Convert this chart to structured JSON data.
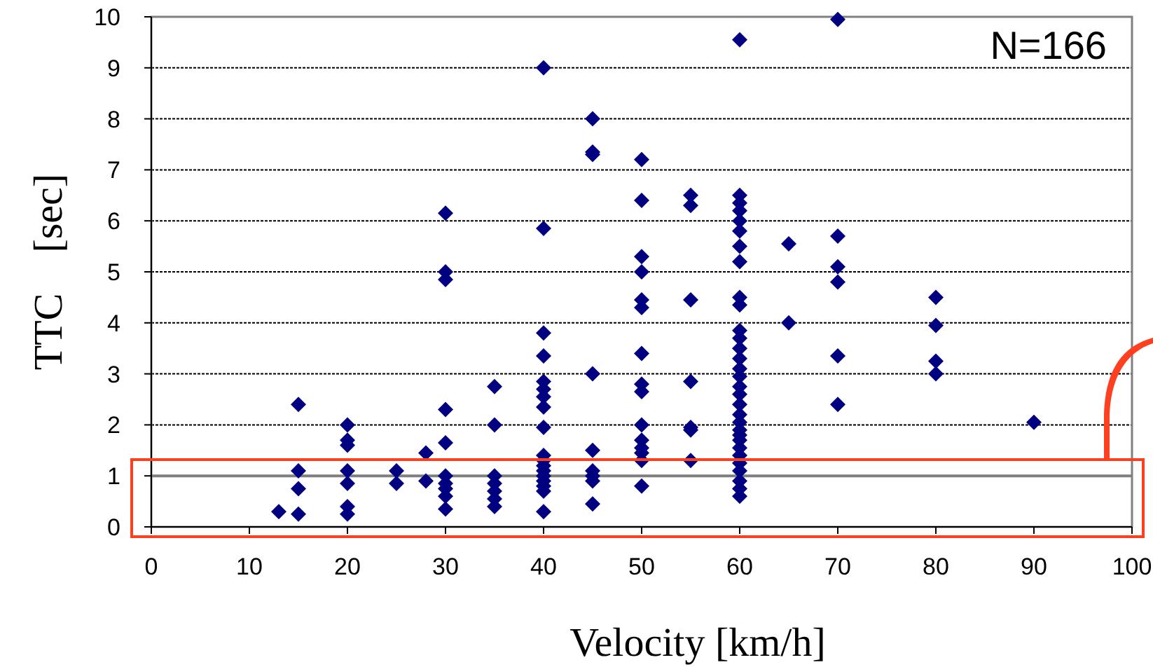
{
  "chart_data": {
    "type": "scatter",
    "xlabel": "Velocity [km/h]",
    "ylabel": "TTC　[sec]",
    "annotations": [
      "N=166"
    ],
    "xlim": [
      0,
      100
    ],
    "ylim": [
      0,
      10
    ],
    "xticks": [
      0,
      10,
      20,
      30,
      40,
      50,
      60,
      70,
      80,
      90,
      100
    ],
    "yticks": [
      0,
      1,
      2,
      3,
      4,
      5,
      6,
      7,
      8,
      9,
      10
    ],
    "grid": "y",
    "marker": "diamond",
    "ref_lines": [
      {
        "axis": "y",
        "value": 1,
        "color": "#808080"
      }
    ],
    "series": [
      {
        "color": "#000080",
        "x": [
          13,
          15,
          15,
          15,
          15,
          20,
          20,
          20,
          20,
          20,
          20,
          20,
          25,
          25,
          28,
          28,
          30,
          30,
          30,
          30,
          30,
          30,
          30,
          30,
          30,
          30,
          35,
          35,
          35,
          35,
          35,
          35,
          35,
          40,
          40,
          40,
          40,
          40,
          40,
          40,
          40,
          40,
          40,
          40,
          40,
          40,
          40,
          40,
          40,
          40,
          40,
          45,
          45,
          45,
          45,
          45,
          45,
          45,
          45,
          45,
          50,
          50,
          50,
          50,
          50,
          50,
          50,
          50,
          50,
          50,
          50,
          50,
          50,
          50,
          50,
          55,
          55,
          55,
          55,
          55,
          55,
          55,
          60,
          60,
          60,
          60,
          60,
          60,
          60,
          60,
          60,
          60,
          60,
          60,
          60,
          60,
          60,
          60,
          60,
          60,
          60,
          60,
          60,
          60,
          60,
          60,
          60,
          60,
          60,
          60,
          60,
          60,
          60,
          65,
          65,
          70,
          70,
          70,
          70,
          70,
          70,
          80,
          80,
          80,
          80,
          90
        ],
        "values": [
          0.3,
          2.4,
          1.1,
          0.75,
          0.25,
          2.0,
          1.7,
          1.6,
          1.1,
          0.85,
          0.4,
          0.25,
          1.1,
          0.85,
          1.45,
          0.9,
          6.15,
          5.0,
          4.85,
          2.3,
          1.65,
          1.0,
          0.85,
          0.75,
          0.6,
          0.35,
          2.75,
          2.0,
          1.0,
          0.85,
          0.7,
          0.55,
          0.4,
          9.0,
          5.85,
          3.8,
          3.35,
          2.85,
          2.7,
          2.55,
          2.35,
          1.95,
          1.4,
          1.3,
          1.2,
          1.1,
          1.0,
          0.9,
          0.8,
          0.7,
          0.3,
          8.0,
          7.35,
          7.3,
          3.0,
          1.5,
          1.1,
          1.0,
          0.9,
          0.45,
          7.2,
          6.4,
          5.3,
          5.0,
          4.45,
          4.3,
          3.4,
          2.8,
          2.65,
          2.0,
          1.7,
          1.55,
          1.45,
          1.3,
          0.8,
          6.5,
          6.3,
          4.45,
          2.85,
          1.95,
          1.9,
          1.3,
          9.55,
          6.5,
          6.35,
          6.2,
          6.0,
          5.8,
          5.5,
          5.2,
          4.5,
          4.35,
          3.85,
          3.7,
          3.5,
          3.3,
          3.1,
          2.95,
          2.75,
          2.6,
          2.4,
          2.2,
          2.05,
          1.9,
          1.8,
          1.7,
          1.55,
          1.4,
          1.25,
          1.1,
          0.9,
          0.75,
          0.6,
          5.55,
          4.0,
          9.95,
          5.7,
          5.1,
          4.8,
          3.35,
          2.4,
          4.5,
          3.95,
          3.25,
          3.0,
          2.05
        ]
      }
    ]
  }
}
